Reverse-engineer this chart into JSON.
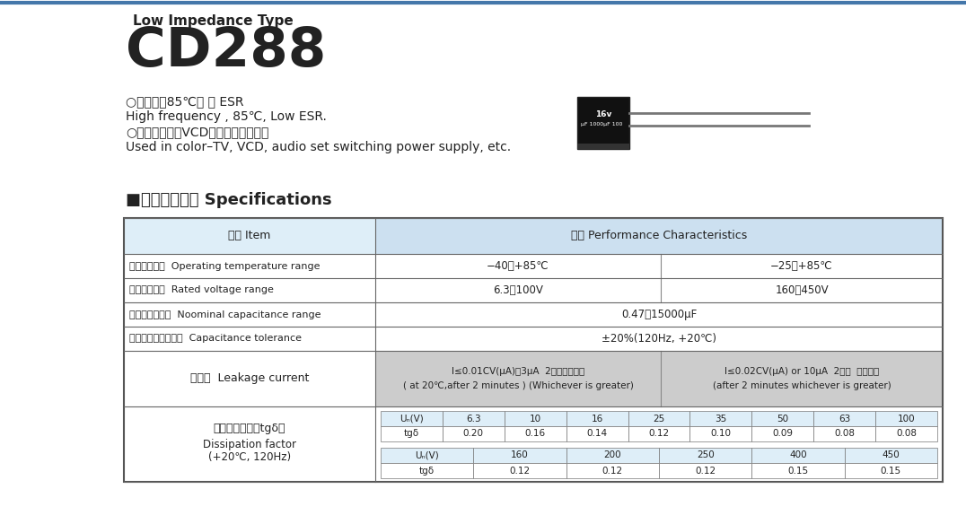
{
  "title_type": "Low Impedance Type",
  "model": "CD288",
  "bullet1_cn": "○高频品，85℃， 低 ESR",
  "bullet1_en": "High frequency , 85℃, Low ESR.",
  "bullet2_cn": "○适用于彩电、VCD、音响等开关电源",
  "bullet2_en": "Used in color–TV, VCD, audio set switching power supply, etc.",
  "section_title": "■主要技术性能 Specifications",
  "header_item": "项目 Item",
  "header_char": "特性 Performance Characteristics",
  "row1_item": "使用温度范围  Operating temperature range",
  "row1_val1": "−40～+85℃",
  "row1_val2": "−25～+85℃",
  "row2_item": "额定电压范围  Rated voltage range",
  "row2_val1": "6.3～100V",
  "row2_val2": "160～450V",
  "row3_item": "标称电容量范围  Noominal capacitance range",
  "row3_val": "0.47～15000μF",
  "row4_item": "标称电容量允许偏差  Capacitance tolerance",
  "row4_val": "±20%(120Hz, +20℃)",
  "row5_item_cn": "漏电流  Leakage current",
  "row5_val1_line1": "I≤0.01CV(μA)或3μA  2分钟取较大者",
  "row5_val1_line2": "( at 20℃,after 2 minutes ) (Whichever is greater)",
  "row5_val2_line1": "I≤0.02CV(μA) or 10μA  2分钟  取较大者",
  "row5_val2_line2": "(after 2 minutes whichever is greater)",
  "row6_item_cn": "损耗角正切値（tgδ）",
  "row6_item_en1": "Dissipation factor",
  "row6_item_en2": "(+20℃, 120Hz)",
  "inner_table1_headers": [
    "Uₙ(V)",
    "6.3",
    "10",
    "16",
    "25",
    "35",
    "50",
    "63",
    "100"
  ],
  "inner_table1_row": [
    "tgδ",
    "0.20",
    "0.16",
    "0.14",
    "0.12",
    "0.10",
    "0.09",
    "0.08",
    "0.08"
  ],
  "inner_table2_headers": [
    "Uₙ(V)",
    "160",
    "200",
    "250",
    "400",
    "450"
  ],
  "inner_table2_row": [
    "tgδ",
    "0.12",
    "0.12",
    "0.12",
    "0.15",
    "0.15"
  ],
  "bg_white": "#ffffff",
  "bg_header": "#cce0f0",
  "bg_light_blue": "#deeef8",
  "bg_gray": "#cccccc",
  "border_color": "#888888",
  "text_color": "#222222",
  "top_border_color": "#4477aa"
}
